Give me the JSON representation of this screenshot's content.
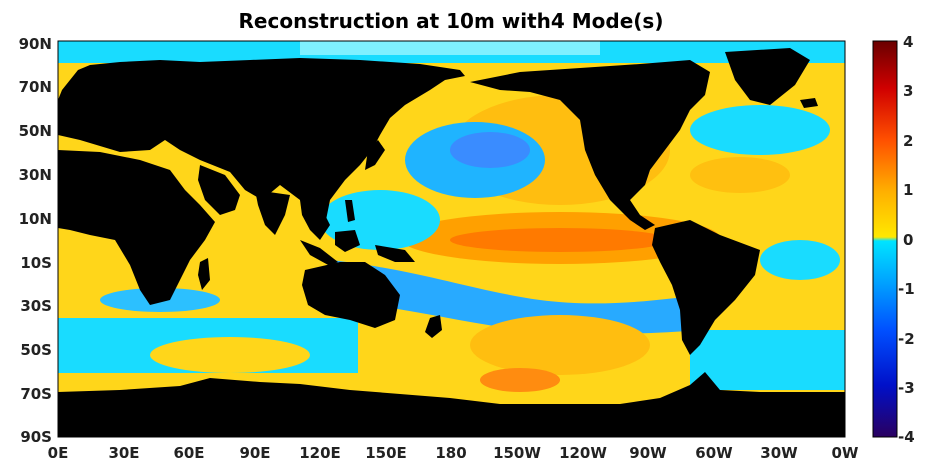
{
  "title": "Reconstruction at 10m with4 Mode(s)",
  "lat_ticks": [
    "90N",
    "70N",
    "50N",
    "30N",
    "10N",
    "10S",
    "30S",
    "50S",
    "70S",
    "90S"
  ],
  "lon_ticks": [
    "0E",
    "30E",
    "60E",
    "90E",
    "120E",
    "150E",
    "180",
    "150W",
    "120W",
    "90W",
    "60W",
    "30W",
    "0W"
  ],
  "colorbar": {
    "min": -4,
    "max": 4,
    "ticks": [
      "4",
      "3",
      "2",
      "1",
      "0",
      "-1",
      "-2",
      "-3",
      "-4"
    ],
    "palette": "jet"
  },
  "colors": {
    "land": "#000000",
    "frame": "#000000"
  }
}
